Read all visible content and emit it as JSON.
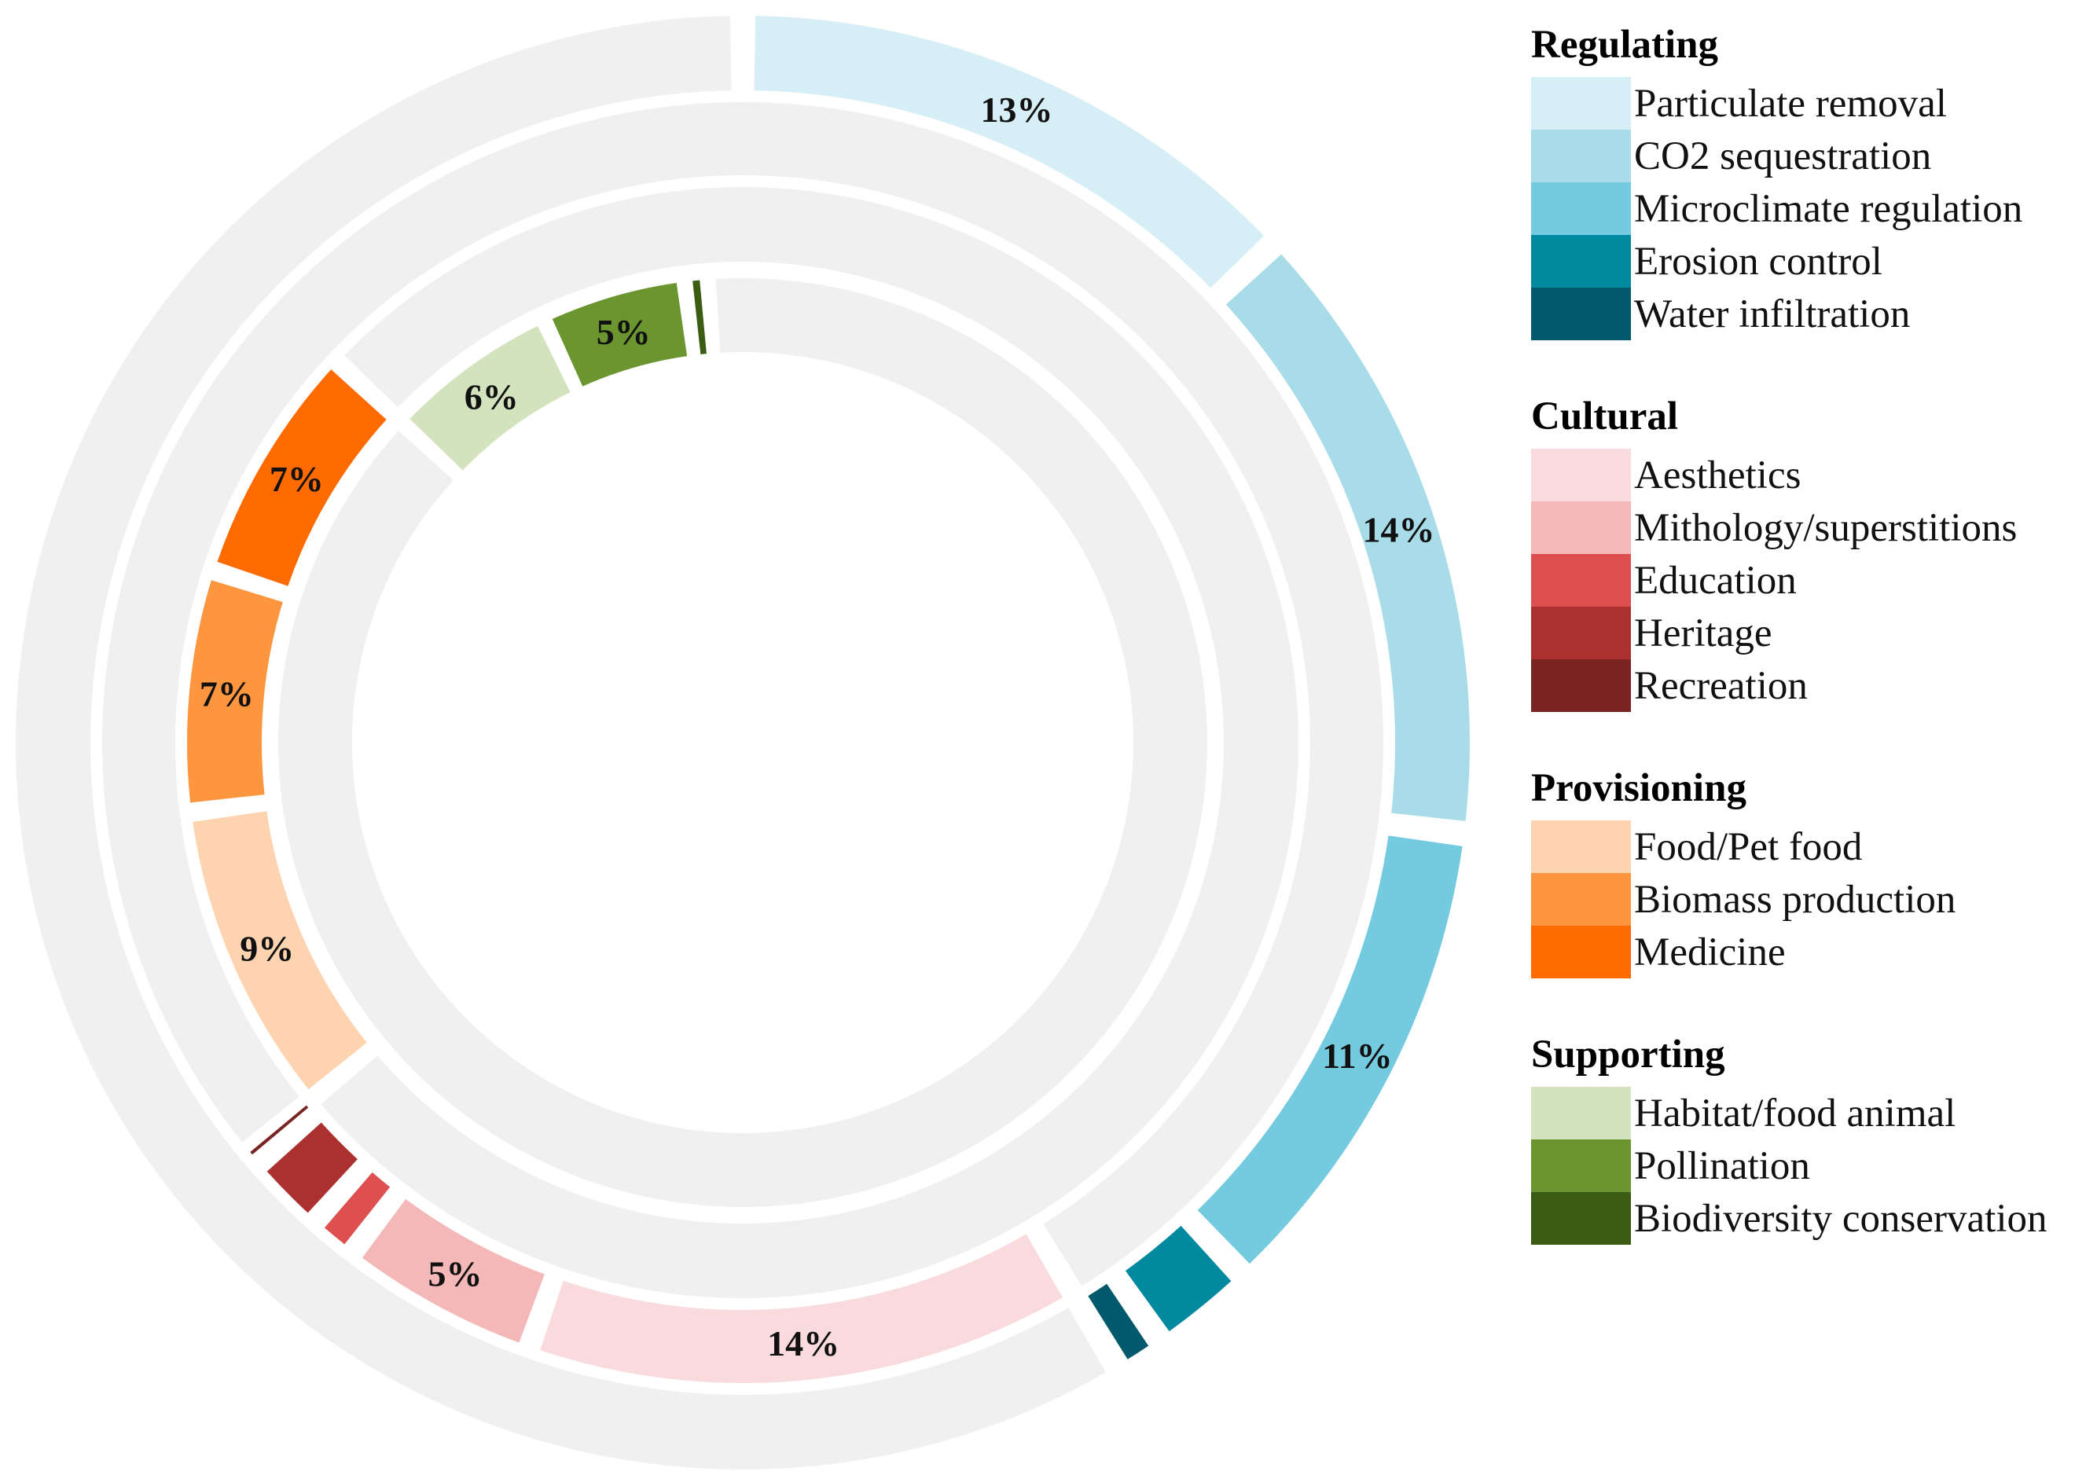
{
  "chart_data": {
    "type": "donut",
    "title": "",
    "value_unit": "%",
    "rings": [
      "Regulating",
      "Cultural",
      "Provisioning",
      "Supporting"
    ],
    "groups": [
      {
        "name": "Regulating",
        "items": [
          {
            "name": "Particulate removal",
            "value": 13,
            "label": "13%",
            "color": "#d6eef5"
          },
          {
            "name": "CO2 sequestration",
            "value": 14,
            "label": "14%",
            "color": "#a9dce9"
          },
          {
            "name": "Microclimate regulation",
            "value": 11,
            "label": "11%",
            "color": "#74cbdf"
          },
          {
            "name": "Erosion control",
            "value": 2.3,
            "label": "",
            "color": "#00899f"
          },
          {
            "name": "Water infiltration",
            "value": 1.1,
            "label": "",
            "color": "#005a6b"
          }
        ]
      },
      {
        "name": "Cultural",
        "items": [
          {
            "name": "Aesthetics",
            "value": 14,
            "label": "14%",
            "color": "#f9dbde"
          },
          {
            "name": "Mithology/superstitions",
            "value": 5,
            "label": "5%",
            "color": "#f4b8b8"
          },
          {
            "name": "Education",
            "value": 1.2,
            "label": "",
            "color": "#de5050"
          },
          {
            "name": "Heritage",
            "value": 2.0,
            "label": "",
            "color": "#ad3030"
          },
          {
            "name": "Recreation",
            "value": 0.4,
            "label": "",
            "color": "#7a2424"
          }
        ]
      },
      {
        "name": "Provisioning",
        "items": [
          {
            "name": "Food/Pet food",
            "value": 9,
            "label": "9%",
            "color": "#fdd3b0"
          },
          {
            "name": "Biomass production",
            "value": 7,
            "label": "7%",
            "color": "#fd963f"
          },
          {
            "name": "Medicine",
            "value": 7,
            "label": "7%",
            "color": "#ff6b00"
          }
        ]
      },
      {
        "name": "Supporting",
        "items": [
          {
            "name": "Habitat/food animal",
            "value": 6,
            "label": "6%",
            "color": "#d3e3be"
          },
          {
            "name": "Pollination",
            "value": 5,
            "label": "5%",
            "color": "#6a952f"
          },
          {
            "name": "Biodiversity conservation",
            "value": 0.8,
            "label": "",
            "color": "#3a5c13"
          }
        ]
      }
    ],
    "background_track_color": "#f0f0f0",
    "legend_position": "right"
  }
}
